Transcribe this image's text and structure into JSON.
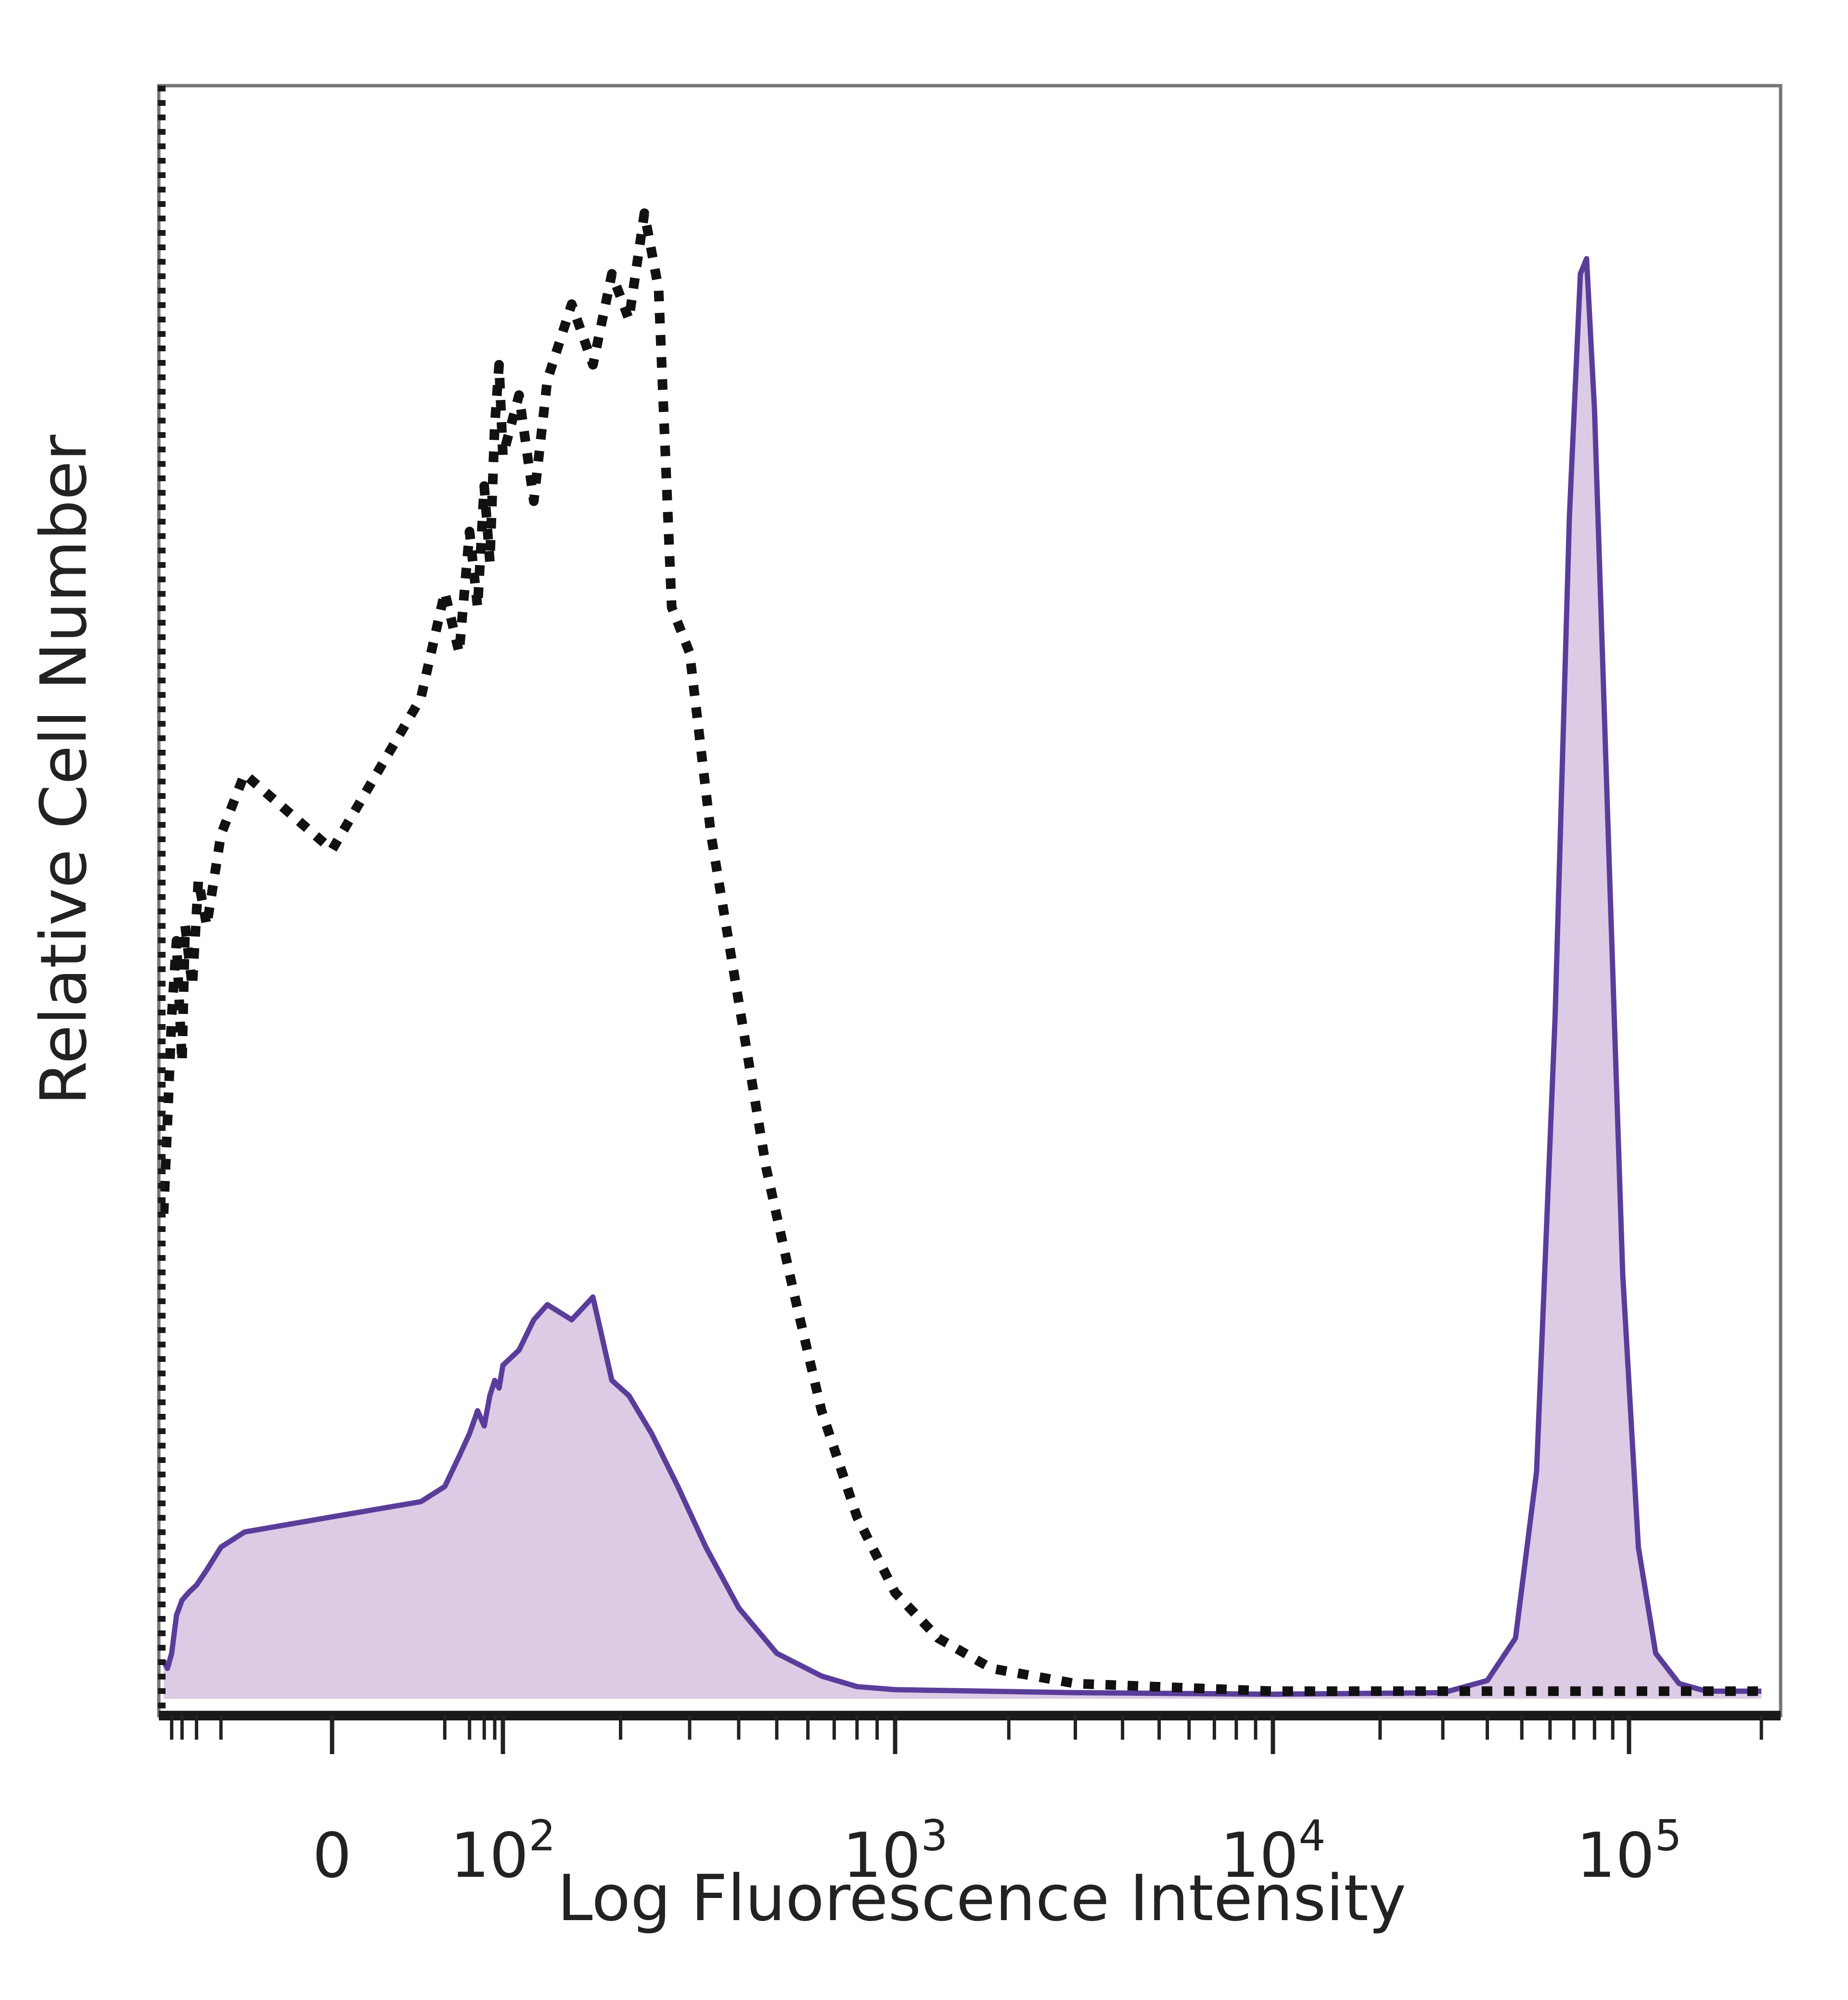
{
  "chart_data": {
    "type": "area",
    "title": "",
    "xlabel": "Log Fluorescence Intensity",
    "ylabel": "Relative Cell Number",
    "x_scale": "biexponential",
    "xlim": [
      -100,
      200000
    ],
    "ylim": [
      0,
      100
    ],
    "grid": false,
    "legend": "none",
    "x_ticks": [
      {
        "value": 0,
        "base": "0",
        "exp": ""
      },
      {
        "value": 100,
        "base": "10",
        "exp": "2"
      },
      {
        "value": 1000,
        "base": "10",
        "exp": "3"
      },
      {
        "value": 10000,
        "base": "10",
        "exp": "4"
      },
      {
        "value": 100000,
        "base": "10",
        "exp": "5"
      }
    ],
    "series": [
      {
        "style": "dotted",
        "color": "#111111",
        "fill": "none",
        "points": [
          [
            -100,
            32
          ],
          [
            -90,
            38
          ],
          [
            -80,
            45
          ],
          [
            -70,
            50
          ],
          [
            -60,
            42
          ],
          [
            -55,
            51
          ],
          [
            -45,
            47
          ],
          [
            -38,
            54
          ],
          [
            -30,
            51
          ],
          [
            -20,
            57
          ],
          [
            -10,
            61
          ],
          [
            0,
            56
          ],
          [
            10,
            66
          ],
          [
            20,
            73
          ],
          [
            30,
            69
          ],
          [
            40,
            77
          ],
          [
            50,
            72
          ],
          [
            60,
            80
          ],
          [
            70,
            75
          ],
          [
            80,
            84
          ],
          [
            90,
            88
          ],
          [
            100,
            82
          ],
          [
            110,
            86
          ],
          [
            120,
            79
          ],
          [
            130,
            87
          ],
          [
            150,
            92
          ],
          [
            170,
            88
          ],
          [
            190,
            94
          ],
          [
            210,
            91
          ],
          [
            230,
            98
          ],
          [
            250,
            93
          ],
          [
            270,
            72
          ],
          [
            300,
            69
          ],
          [
            340,
            57
          ],
          [
            400,
            46
          ],
          [
            470,
            35
          ],
          [
            550,
            27
          ],
          [
            650,
            19
          ],
          [
            800,
            12
          ],
          [
            1000,
            7
          ],
          [
            1300,
            4
          ],
          [
            1800,
            2
          ],
          [
            3000,
            1
          ],
          [
            10000,
            0.5
          ],
          [
            100000,
            0.5
          ],
          [
            200000,
            0.5
          ]
        ]
      },
      {
        "style": "solid",
        "color": "#5a3d9a",
        "fill": "#dccbe4",
        "points": [
          [
            -100,
            2.5
          ],
          [
            -90,
            2
          ],
          [
            -80,
            3
          ],
          [
            -70,
            5.5
          ],
          [
            -60,
            6.5
          ],
          [
            -50,
            7
          ],
          [
            -40,
            7.5
          ],
          [
            -30,
            8.5
          ],
          [
            -20,
            10
          ],
          [
            -10,
            11
          ],
          [
            0,
            12
          ],
          [
            10,
            13
          ],
          [
            20,
            14
          ],
          [
            30,
            16
          ],
          [
            40,
            17.5
          ],
          [
            50,
            19
          ],
          [
            60,
            18
          ],
          [
            70,
            20
          ],
          [
            80,
            21
          ],
          [
            90,
            20.5
          ],
          [
            100,
            22
          ],
          [
            110,
            23
          ],
          [
            120,
            25
          ],
          [
            130,
            26
          ],
          [
            150,
            25
          ],
          [
            170,
            26.5
          ],
          [
            190,
            21
          ],
          [
            210,
            20
          ],
          [
            240,
            17.5
          ],
          [
            280,
            14
          ],
          [
            330,
            10
          ],
          [
            400,
            6
          ],
          [
            500,
            3
          ],
          [
            650,
            1.5
          ],
          [
            800,
            0.8
          ],
          [
            1000,
            0.6
          ],
          [
            3000,
            0.4
          ],
          [
            10000,
            0.3
          ],
          [
            30000,
            0.4
          ],
          [
            40000,
            1.2
          ],
          [
            48000,
            4
          ],
          [
            55000,
            15
          ],
          [
            62000,
            45
          ],
          [
            68000,
            78
          ],
          [
            73000,
            94
          ],
          [
            76000,
            95
          ],
          [
            80000,
            85
          ],
          [
            88000,
            55
          ],
          [
            96000,
            28
          ],
          [
            105000,
            10
          ],
          [
            115000,
            3
          ],
          [
            130000,
            1
          ],
          [
            150000,
            0.5
          ],
          [
            200000,
            0.5
          ]
        ]
      }
    ]
  }
}
